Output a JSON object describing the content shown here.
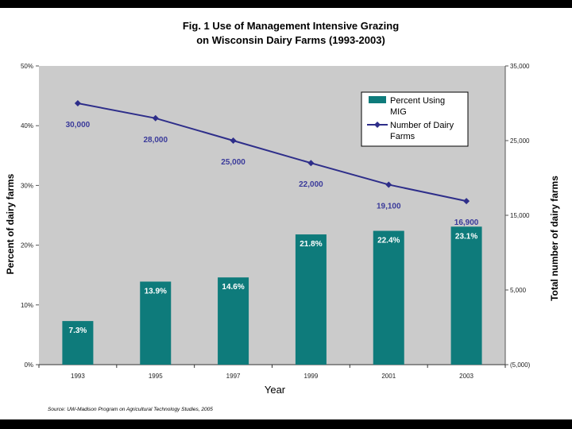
{
  "chart_data": {
    "type": "bar",
    "title": [
      "Fig. 1  Use of Management Intensive Grazing",
      "on Wisconsin Dairy Farms (1993-2003)"
    ],
    "categories": [
      "1993",
      "1995",
      "1997",
      "1999",
      "2001",
      "2003"
    ],
    "xlabel": "Year",
    "ylabel": "Percent of dairy farms",
    "y2label": "Total number of dairy farms",
    "ylim": [
      0,
      50
    ],
    "y2lim": [
      -5000,
      35000
    ],
    "yticks": [
      0,
      10,
      20,
      30,
      40,
      50
    ],
    "ytick_labels": [
      "0%",
      "10%",
      "20%",
      "30%",
      "40%",
      "50%"
    ],
    "y2ticks": [
      -5000,
      5000,
      15000,
      25000,
      35000
    ],
    "y2tick_labels": [
      "(5,000)",
      "5,000",
      "15,000",
      "25,000",
      "35,000"
    ],
    "series": [
      {
        "name": "Percent Using MIG",
        "kind": "bar",
        "axis": "left",
        "color": "#0e7b7b",
        "values": [
          7.3,
          13.9,
          14.6,
          21.8,
          22.4,
          23.1
        ],
        "labels": [
          "7.3%",
          "13.9%",
          "14.6%",
          "21.8%",
          "22.4%",
          "23.1%"
        ]
      },
      {
        "name": "Number of Dairy Farms",
        "kind": "line",
        "axis": "right",
        "color": "#2e2e8a",
        "values": [
          30000,
          28000,
          25000,
          22000,
          19100,
          16900
        ],
        "labels": [
          "30,000",
          "28,000",
          "25,000",
          "22,000",
          "19,100",
          "16,900"
        ]
      }
    ],
    "legend": {
      "position": "top-right",
      "entries": [
        [
          "Percent Using",
          "MIG"
        ],
        [
          "Number of Dairy",
          "Farms"
        ]
      ]
    },
    "plot_background": "#cbcbcb",
    "source": "Source: UW-Madison Program on Agricultural Technology Studies, 2005"
  }
}
